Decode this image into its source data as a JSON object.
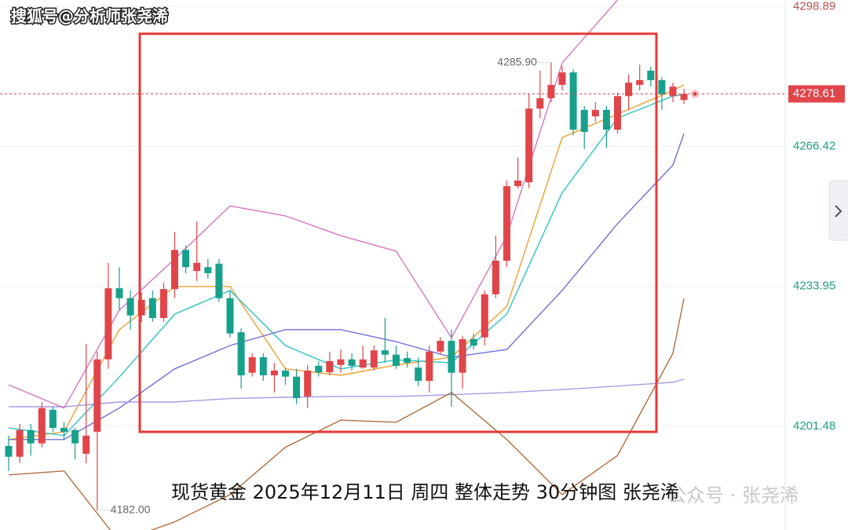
{
  "watermark": "搜狐号@分析师张尧浠",
  "caption": "现货黄金 2025年12月11日 周四 整体走势 30分钟图 张尧浠",
  "faint_mark": "公众号 · 张尧浠",
  "chart_data": {
    "type": "candlestick",
    "ylim": [
      4177.4,
      4300.4
    ],
    "yticks": [
      4298.89,
      4266.42,
      4233.95,
      4201.48
    ],
    "grid": true,
    "up_color": "#e0454a",
    "down_color": "#17a08c",
    "last_price": 4278.61,
    "high_mark": {
      "value": 4285.9,
      "label": "4285.90"
    },
    "low_mark": {
      "value": 4182,
      "label": "4182.00"
    },
    "candles": {
      "open": [
        4196.9,
        4194.4,
        4200.6,
        4197.5,
        4205.3,
        4201.1,
        4200.6,
        4195.1,
        4200.2,
        4217.0,
        4233.5,
        4231.2,
        4227.2,
        4231.2,
        4226.6,
        4233.3,
        4242.4,
        4237.5,
        4238.4,
        4239.2,
        4231.2,
        4223.3,
        4213.9,
        4217.5,
        4213.3,
        4214.4,
        4213.0,
        4208.4,
        4215.5,
        4214.0,
        4215.7,
        4217.0,
        4215.1,
        4215.1,
        4219.1,
        4218.1,
        4217.3,
        4215.1,
        4212.0,
        4218.8,
        4221.3,
        4213.9,
        4221.7,
        4222.1,
        4232.1,
        4239.9,
        4257.2,
        4258.1,
        4275.2,
        4277.6,
        4280.7,
        4283.6,
        4274.9,
        4273.4,
        4274.9,
        4270.3,
        4278.1,
        4280.7,
        4284.0,
        4281.8,
        4278.1,
        4277.2
      ],
      "close": [
        4194.4,
        4200.6,
        4197.5,
        4205.7,
        4201.1,
        4200.2,
        4197.5,
        4199.3,
        4217.0,
        4233.5,
        4231.2,
        4227.2,
        4230.8,
        4226.6,
        4233.3,
        4242.4,
        4238.4,
        4239.4,
        4237.0,
        4231.2,
        4223.0,
        4213.3,
        4217.5,
        4213.3,
        4214.4,
        4213.0,
        4208.0,
        4214.4,
        4214.0,
        4216.6,
        4217.0,
        4215.5,
        4217.0,
        4219.1,
        4218.1,
        4215.5,
        4216.2,
        4212.0,
        4218.8,
        4221.3,
        4213.9,
        4221.7,
        4220.2,
        4232.1,
        4239.9,
        4257.2,
        4258.5,
        4275.2,
        4277.6,
        4280.7,
        4283.6,
        4270.3,
        4269.8,
        4274.9,
        4270.3,
        4278.1,
        4281.2,
        4281.8,
        4281.8,
        4278.5,
        4280.3,
        4278.61
      ],
      "high": [
        4199.3,
        4202.0,
        4202.0,
        4207.1,
        4206.0,
        4202.4,
        4201.1,
        4220.6,
        4218.8,
        4239.4,
        4238.4,
        4233.0,
        4232.6,
        4233.0,
        4234.8,
        4246.6,
        4243.5,
        4249.0,
        4240.3,
        4240.3,
        4233.0,
        4224.2,
        4218.4,
        4218.4,
        4216.2,
        4215.1,
        4214.8,
        4215.7,
        4216.6,
        4218.8,
        4219.3,
        4218.4,
        4220.2,
        4220.2,
        4226.6,
        4220.2,
        4218.8,
        4217.5,
        4220.2,
        4222.1,
        4223.9,
        4222.4,
        4223.0,
        4233.0,
        4245.7,
        4258.5,
        4263.9,
        4278.5,
        4284.0,
        4285.9,
        4285.0,
        4284.3,
        4275.8,
        4276.7,
        4275.8,
        4278.9,
        4283.1,
        4285.4,
        4284.9,
        4282.5,
        4281.2,
        4279.8
      ],
      "low": [
        4191.1,
        4192.9,
        4194.7,
        4196.6,
        4200.2,
        4198.4,
        4193.8,
        4192.9,
        4182.0,
        4214.8,
        4228.4,
        4223.9,
        4225.7,
        4225.7,
        4225.7,
        4231.2,
        4237.0,
        4235.2,
        4235.7,
        4230.3,
        4222.1,
        4210.2,
        4213.0,
        4212.0,
        4209.3,
        4211.1,
        4206.6,
        4205.7,
        4213.0,
        4213.3,
        4213.9,
        4214.4,
        4214.8,
        4214.4,
        4216.2,
        4214.8,
        4215.1,
        4210.8,
        4209.3,
        4218.1,
        4206.0,
        4210.2,
        4219.3,
        4220.2,
        4231.2,
        4238.4,
        4256.7,
        4256.7,
        4273.0,
        4276.7,
        4279.4,
        4269.0,
        4265.8,
        4272.1,
        4266.1,
        4269.4,
        4274.9,
        4279.4,
        4280.3,
        4274.9,
        4276.7,
        4276.3
      ]
    },
    "lines": [
      {
        "color": "#f0a030",
        "x": [
          0,
          5,
          10,
          15,
          20,
          25,
          30,
          35,
          40,
          45,
          50,
          55,
          60,
          61
        ],
        "values": [
          4198.4,
          4200.2,
          4223.9,
          4233.9,
          4233.9,
          4214.8,
          4213.3,
          4215.7,
          4217.5,
          4229.3,
          4268.5,
          4273.9,
          4279.4,
          4280.7
        ]
      },
      {
        "color": "#2ec4c4",
        "x": [
          0,
          5,
          10,
          15,
          20,
          25,
          30,
          35,
          40,
          45,
          50,
          55,
          60,
          61
        ],
        "values": [
          4201.1,
          4199.3,
          4212.9,
          4227.5,
          4233.0,
          4220.2,
          4214.8,
          4216.9,
          4216.2,
          4227.5,
          4255.7,
          4273.0,
          4278.1,
          4278.5
        ]
      },
      {
        "color": "#6f6fd8",
        "x": [
          0,
          5,
          10,
          15,
          20,
          25,
          30,
          35,
          40,
          45,
          50,
          55,
          60,
          61
        ],
        "values": [
          4198.4,
          4198.4,
          4205.7,
          4214.8,
          4220.2,
          4223.9,
          4223.9,
          4221.1,
          4217.5,
          4219.3,
          4233.0,
          4248.5,
          4262.1,
          4269.4
        ]
      },
      {
        "color": "#a99be0",
        "x": [
          0,
          5,
          10,
          15,
          20,
          25,
          30,
          35,
          40,
          45,
          50,
          55,
          60,
          61
        ],
        "values": [
          4206.0,
          4206.0,
          4207.1,
          4207.1,
          4207.9,
          4208.2,
          4208.4,
          4208.4,
          4208.8,
          4209.3,
          4210.0,
          4210.8,
          4211.7,
          4212.4
        ]
      },
      {
        "color": "#d678c0",
        "x": [
          0,
          5,
          10,
          15,
          20,
          25,
          30,
          35,
          40,
          45,
          50,
          55,
          60,
          61
        ],
        "values": [
          4211.1,
          4205.7,
          4228.4,
          4240.3,
          4252.6,
          4250.3,
          4245.7,
          4242.1,
          4222.0,
          4245.7,
          4285.8,
          4300.4,
          null,
          null
        ]
      },
      {
        "color": "#b07040",
        "x": [
          0,
          5,
          10,
          15,
          20,
          25,
          30,
          35,
          40,
          45,
          50,
          55,
          60,
          61
        ],
        "values": [
          4190.2,
          4191.1,
          4174.7,
          4179.3,
          4185.6,
          4196.6,
          4202.9,
          4202.4,
          4209.3,
          4198.4,
          4185.6,
          4194.7,
          4218.4,
          4231.1
        ]
      }
    ]
  }
}
